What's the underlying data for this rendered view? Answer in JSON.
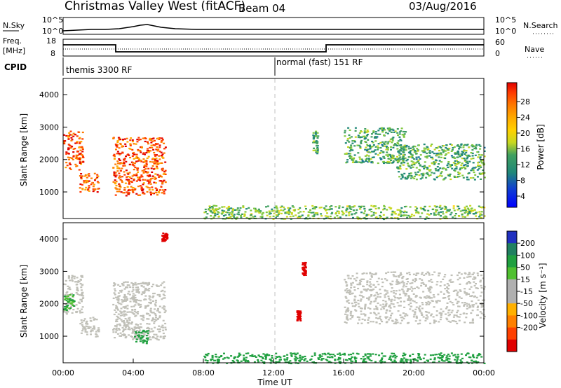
{
  "header": {
    "title": "Christmas Valley West (fitACF)",
    "beam": "Beam 04",
    "date": "03/Aug/2016"
  },
  "noise_panel": {
    "left_label": "N.Sky",
    "left_ticks": [
      "10^5",
      "10^0"
    ],
    "right_label": "N.Search",
    "right_ticks": [
      "10^5",
      "10^0"
    ]
  },
  "freq_panel": {
    "left_label_1": "Freq.",
    "left_label_2": "[MHz]",
    "left_ticks": [
      "18",
      "8"
    ],
    "right_label": "Nave",
    "right_ticks": [
      "60",
      "0"
    ]
  },
  "cpid_panel": {
    "label": "CPID",
    "mode_1": "themis 3300 RF",
    "mode_2": "normal (fast) 151 RF"
  },
  "axes": {
    "ylabel": "Slant Range [km]",
    "yticks": [
      "4000",
      "3000",
      "2000",
      "1000"
    ],
    "xlabel": "Time UT",
    "xticks": [
      "00:00",
      "04:00",
      "08:00",
      "12:00",
      "16:00",
      "20:00",
      "00:00"
    ]
  },
  "power_scale": {
    "label": "Power [dB]",
    "ticks": [
      "28",
      "24",
      "20",
      "16",
      "12",
      "8",
      "4"
    ],
    "colors": [
      "#e00000",
      "#ff3a00",
      "#ff7a00",
      "#ffaa00",
      "#ffd000",
      "#c8d820",
      "#80c840",
      "#40a060",
      "#208878",
      "#1870a0",
      "#1040d0",
      "#0000ff"
    ]
  },
  "velocity_scale": {
    "label": "Velocity [m s⁻¹]",
    "ticks": [
      "200",
      "100",
      "50",
      "15",
      "-15",
      "-50",
      "-100",
      "-200"
    ],
    "colors": [
      "#2030c0",
      "#208060",
      "#20a040",
      "#50c030",
      "#b0b0b0",
      "#b0b0b0",
      "#ffb000",
      "#ff8000",
      "#ff4000",
      "#e00000"
    ]
  },
  "colors": {
    "power_strong": "#e82000",
    "power_mid": "#ff8000",
    "power_weak": "#2a8a70",
    "vel_ground": "#c0c0b8",
    "vel_pos": "#50c030",
    "vel_neg": "#e01010",
    "dashed": "#c0c0c0"
  },
  "chart_data": [
    {
      "type": "heatmap",
      "title": "Power",
      "xlabel": "Time UT",
      "ylabel": "Slant Range [km]",
      "x_range_hours": [
        0,
        24
      ],
      "y_range_km": [
        180,
        4500
      ],
      "colorbar_range_dB": [
        0,
        32
      ],
      "regions": [
        {
          "t": [
            0.0,
            1.1
          ],
          "r": [
            1700,
            2900
          ],
          "power_dB": 28
        },
        {
          "t": [
            0.9,
            2.0
          ],
          "r": [
            1000,
            1600
          ],
          "power_dB": 28
        },
        {
          "t": [
            2.8,
            5.8
          ],
          "r": [
            900,
            2700
          ],
          "power_dB": 28
        },
        {
          "t": [
            14.2,
            14.5
          ],
          "r": [
            2200,
            2900
          ],
          "power_dB": 12
        },
        {
          "t": [
            16.0,
            19.5
          ],
          "r": [
            1900,
            3000
          ],
          "power_dB": 12
        },
        {
          "t": [
            19.0,
            24.0
          ],
          "r": [
            1400,
            2500
          ],
          "power_dB": 12
        },
        {
          "t": [
            8.0,
            24.0
          ],
          "r": [
            180,
            600
          ],
          "power_dB": 14
        }
      ]
    },
    {
      "type": "heatmap",
      "title": "Velocity",
      "xlabel": "Time UT",
      "ylabel": "Slant Range [km]",
      "x_range_hours": [
        0,
        24
      ],
      "y_range_km": [
        180,
        4500
      ],
      "colorbar_range_ms": [
        -200,
        200
      ],
      "regions": [
        {
          "t": [
            0.0,
            1.1
          ],
          "r": [
            1700,
            2900
          ],
          "velocity": 0
        },
        {
          "t": [
            0.0,
            0.6
          ],
          "r": [
            1800,
            2300
          ],
          "velocity": 30
        },
        {
          "t": [
            0.9,
            2.0
          ],
          "r": [
            1000,
            1600
          ],
          "velocity": 0
        },
        {
          "t": [
            2.8,
            5.8
          ],
          "r": [
            900,
            2700
          ],
          "velocity": 0
        },
        {
          "t": [
            4.0,
            4.8
          ],
          "r": [
            800,
            1200
          ],
          "velocity": 40
        },
        {
          "t": [
            5.6,
            5.9
          ],
          "r": [
            3950,
            4200
          ],
          "velocity": -200
        },
        {
          "t": [
            13.6,
            13.8
          ],
          "r": [
            2900,
            3300
          ],
          "velocity": -200
        },
        {
          "t": [
            13.3,
            13.5
          ],
          "r": [
            1500,
            1800
          ],
          "velocity": -200
        },
        {
          "t": [
            16.0,
            24.0
          ],
          "r": [
            1400,
            3000
          ],
          "velocity": 0
        },
        {
          "t": [
            8.0,
            24.0
          ],
          "r": [
            180,
            500
          ],
          "velocity": 40
        }
      ]
    }
  ]
}
